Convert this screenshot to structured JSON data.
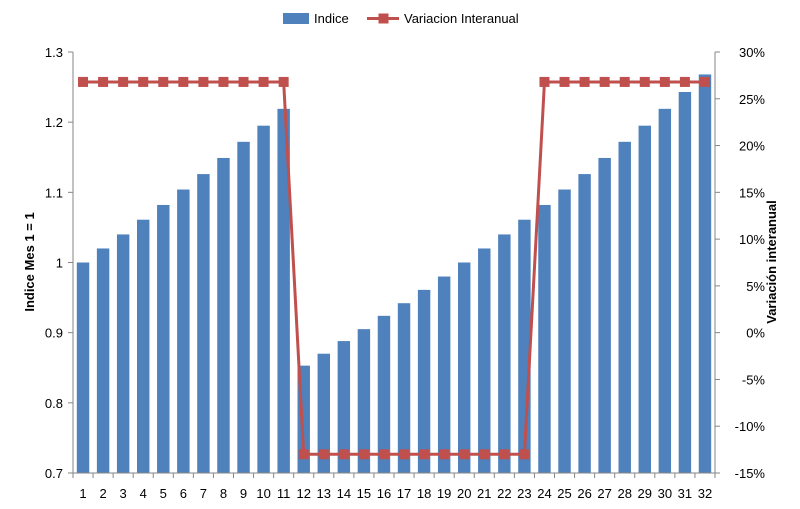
{
  "chart_data": {
    "type": "bar",
    "categories": [
      "1",
      "2",
      "3",
      "4",
      "5",
      "6",
      "7",
      "8",
      "9",
      "10",
      "11",
      "12",
      "13",
      "14",
      "15",
      "16",
      "17",
      "18",
      "19",
      "20",
      "21",
      "22",
      "23",
      "24",
      "25",
      "26",
      "27",
      "28",
      "29",
      "30",
      "31",
      "32"
    ],
    "series": [
      {
        "name": "Indice",
        "type": "bar",
        "axis": "left",
        "color": "#4f81bd",
        "values": [
          1.0,
          1.02,
          1.04,
          1.061,
          1.082,
          1.104,
          1.126,
          1.149,
          1.172,
          1.195,
          1.219,
          0.853,
          0.87,
          0.888,
          0.905,
          0.924,
          0.942,
          0.961,
          0.98,
          1.0,
          1.02,
          1.04,
          1.061,
          1.082,
          1.104,
          1.126,
          1.149,
          1.172,
          1.195,
          1.219,
          1.243,
          1.268
        ]
      },
      {
        "name": "Variacion Interanual",
        "type": "line",
        "axis": "right",
        "color": "#c0504d",
        "values": [
          0.268,
          0.268,
          0.268,
          0.268,
          0.268,
          0.268,
          0.268,
          0.268,
          0.268,
          0.268,
          0.268,
          -0.13,
          -0.13,
          -0.13,
          -0.13,
          -0.13,
          -0.13,
          -0.13,
          -0.13,
          -0.13,
          -0.13,
          -0.13,
          -0.13,
          0.268,
          0.268,
          0.268,
          0.268,
          0.268,
          0.268,
          0.268,
          0.268,
          0.268
        ]
      }
    ],
    "ylabel": "Indice Mes 1 = 1",
    "y2label": "Variación interanual",
    "ylim": [
      0.7,
      1.3
    ],
    "y2lim": [
      -0.15,
      0.3
    ],
    "yticks": [
      "0.7",
      "0.8",
      "0.9",
      "1",
      "1.1",
      "1.2",
      "1.3"
    ],
    "y2ticks": [
      "-15%",
      "-10%",
      "-5%",
      "0%",
      "5%",
      "10%",
      "15%",
      "20%",
      "25%",
      "30%"
    ],
    "legend_position": "top",
    "grid": false
  }
}
